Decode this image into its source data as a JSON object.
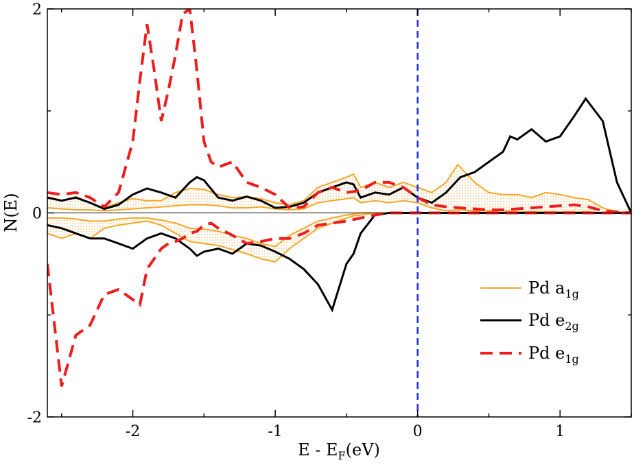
{
  "chart_data": {
    "type": "line",
    "title": "",
    "xlabel": "E - E_F(eV)",
    "xlabel_parts": {
      "main": "E - E",
      "sub": "F",
      "tail": "(eV)"
    },
    "ylabel": "N(E)",
    "xlim": [
      -2.6,
      1.5
    ],
    "ylim": [
      -2,
      2
    ],
    "x_ticks": [
      -2,
      -1,
      0,
      1
    ],
    "x_tick_labels": [
      "-2",
      "-1",
      "0",
      "1"
    ],
    "y_ticks": [
      -2,
      0,
      2
    ],
    "y_tick_labels": [
      "-2",
      "0",
      "2"
    ],
    "fermi_level": 0,
    "legend_position": "bottom-right",
    "colors": {
      "a1g": "#f5a623",
      "e2g": "#000000",
      "e1g": "#ee1c1c",
      "fermi": "#1f2fd6",
      "fill": "#f3c277"
    },
    "series": [
      {
        "name": "Pd a1g",
        "legend_main": "Pd a",
        "legend_sub": "1g",
        "style": "solid",
        "x": [
          -2.6,
          -2.5,
          -2.4,
          -2.3,
          -2.2,
          -2.1,
          -2.0,
          -1.9,
          -1.8,
          -1.7,
          -1.6,
          -1.5,
          -1.4,
          -1.3,
          -1.2,
          -1.1,
          -1.0,
          -0.9,
          -0.8,
          -0.7,
          -0.6,
          -0.5,
          -0.45,
          -0.4,
          -0.3,
          -0.2,
          -0.1,
          0,
          0.1,
          0.2,
          0.28,
          0.3,
          0.4,
          0.5,
          0.6,
          0.7,
          0.8,
          0.9,
          1.0,
          1.1,
          1.2,
          1.3,
          1.4,
          1.5
        ],
        "up": [
          0.16,
          0.12,
          0.16,
          0.1,
          0.05,
          0.1,
          0.14,
          0.12,
          0.12,
          0.2,
          0.24,
          0.23,
          0.18,
          0.15,
          0.16,
          0.14,
          0.1,
          0.08,
          0.12,
          0.25,
          0.3,
          0.35,
          0.38,
          0.25,
          0.3,
          0.25,
          0.3,
          0.25,
          0.2,
          0.3,
          0.47,
          0.45,
          0.3,
          0.2,
          0.18,
          0.18,
          0.15,
          0.2,
          0.18,
          0.15,
          0.13,
          0.05,
          0.01,
          0.0
        ],
        "up_inner": [
          0.05,
          0.04,
          0.03,
          0.03,
          0.02,
          0.03,
          0.04,
          0.05,
          0.06,
          0.07,
          0.08,
          0.08,
          0.07,
          0.05,
          0.05,
          0.06,
          0.04,
          0.03,
          0.04,
          0.1,
          0.12,
          0.14,
          0.15,
          0.1,
          0.12,
          0.1,
          0.12,
          0.1,
          0.05,
          0.02,
          0.03,
          0.03,
          0.02,
          0.02,
          0.02,
          0.01,
          0.01,
          0.01,
          0.01,
          0.01,
          0.01,
          0.0,
          0.0,
          0.0
        ],
        "down": [
          -0.2,
          -0.25,
          -0.2,
          -0.25,
          -0.15,
          -0.12,
          -0.1,
          -0.08,
          -0.12,
          -0.2,
          -0.28,
          -0.3,
          -0.32,
          -0.36,
          -0.4,
          -0.45,
          -0.48,
          -0.35,
          -0.25,
          -0.15,
          -0.1,
          -0.05,
          -0.03,
          -0.02,
          0.0,
          0.0,
          0.0,
          0.0,
          0.0,
          0.0,
          0.0,
          0.0,
          0.0,
          0.0,
          0.0,
          0.0,
          0.0,
          0.0,
          0.0,
          0.0,
          0.0,
          0.0,
          0.0,
          0.0
        ],
        "down_inner": [
          -0.05,
          -0.05,
          -0.06,
          -0.08,
          -0.08,
          -0.06,
          -0.05,
          -0.05,
          -0.07,
          -0.1,
          -0.15,
          -0.16,
          -0.18,
          -0.22,
          -0.25,
          -0.3,
          -0.33,
          -0.22,
          -0.15,
          -0.08,
          -0.05,
          -0.02,
          -0.01,
          0.0,
          0.0,
          0.0,
          0.0,
          0.0,
          0.0,
          0.0,
          0.0,
          0.0,
          0.0,
          0.0,
          0.0,
          0.0,
          0.0,
          0.0,
          0.0,
          0.0,
          0.0,
          0.0,
          0.0,
          0.0
        ]
      },
      {
        "name": "Pd e2g",
        "legend_main": "Pd e",
        "legend_sub": "2g",
        "style": "solid",
        "x": [
          -2.6,
          -2.5,
          -2.4,
          -2.3,
          -2.2,
          -2.1,
          -2.0,
          -1.9,
          -1.8,
          -1.7,
          -1.6,
          -1.55,
          -1.5,
          -1.4,
          -1.3,
          -1.2,
          -1.1,
          -1.0,
          -0.9,
          -0.8,
          -0.7,
          -0.6,
          -0.5,
          -0.45,
          -0.4,
          -0.3,
          -0.2,
          -0.1,
          0,
          0.1,
          0.2,
          0.3,
          0.4,
          0.5,
          0.6,
          0.65,
          0.7,
          0.8,
          0.9,
          1.0,
          1.1,
          1.18,
          1.3,
          1.4,
          1.5
        ],
        "up": [
          0.15,
          0.12,
          0.15,
          0.1,
          0.04,
          0.08,
          0.18,
          0.24,
          0.2,
          0.15,
          0.3,
          0.35,
          0.32,
          0.15,
          0.12,
          0.16,
          0.12,
          0.05,
          0.06,
          0.1,
          0.2,
          0.25,
          0.3,
          0.28,
          0.15,
          0.2,
          0.18,
          0.25,
          0.15,
          0.1,
          0.2,
          0.35,
          0.4,
          0.5,
          0.6,
          0.75,
          0.72,
          0.82,
          0.7,
          0.75,
          0.95,
          1.12,
          0.9,
          0.3,
          0.0
        ],
        "down": [
          -0.12,
          -0.15,
          -0.2,
          -0.25,
          -0.25,
          -0.3,
          -0.35,
          -0.25,
          -0.2,
          -0.25,
          -0.35,
          -0.42,
          -0.38,
          -0.35,
          -0.4,
          -0.3,
          -0.32,
          -0.38,
          -0.45,
          -0.55,
          -0.7,
          -0.95,
          -0.5,
          -0.4,
          -0.2,
          -0.02,
          0,
          0,
          0,
          0,
          0,
          0,
          0,
          0,
          0,
          0,
          0,
          0,
          0,
          0,
          0,
          0,
          0,
          0,
          0
        ]
      },
      {
        "name": "Pd e1g",
        "legend_main": "Pd e",
        "legend_sub": "1g",
        "style": "dashed",
        "x": [
          -2.6,
          -2.5,
          -2.4,
          -2.3,
          -2.2,
          -2.1,
          -2.0,
          -1.95,
          -1.9,
          -1.85,
          -1.8,
          -1.75,
          -1.7,
          -1.65,
          -1.6,
          -1.55,
          -1.5,
          -1.45,
          -1.4,
          -1.3,
          -1.2,
          -1.1,
          -1.0,
          -0.9,
          -0.8,
          -0.7,
          -0.6,
          -0.5,
          -0.4,
          -0.3,
          -0.2,
          -0.1,
          0,
          0.1,
          0.2,
          0.3,
          0.4,
          0.5,
          0.6,
          0.7,
          0.8,
          0.9,
          1.0,
          1.1,
          1.2,
          1.3,
          1.4,
          1.5
        ],
        "up": [
          0.2,
          0.18,
          0.2,
          0.15,
          0.06,
          0.2,
          0.7,
          1.3,
          1.85,
          1.4,
          0.9,
          1.2,
          1.55,
          1.95,
          2.0,
          1.4,
          0.7,
          0.5,
          0.45,
          0.5,
          0.3,
          0.25,
          0.18,
          0.05,
          0.06,
          0.2,
          0.25,
          0.2,
          0.22,
          0.3,
          0.3,
          0.25,
          0.15,
          0.08,
          0.06,
          0.05,
          0.04,
          0.03,
          0.03,
          0.04,
          0.05,
          0.06,
          0.07,
          0.08,
          0.06,
          0.02,
          0.01,
          0.0
        ],
        "down": [
          -0.5,
          -1.7,
          -1.2,
          -1.1,
          -0.8,
          -0.75,
          -0.85,
          -0.9,
          -0.55,
          -0.45,
          -0.35,
          -0.3,
          -0.28,
          -0.25,
          -0.2,
          -0.18,
          -0.12,
          -0.1,
          -0.15,
          -0.22,
          -0.3,
          -0.28,
          -0.25,
          -0.25,
          -0.2,
          -0.12,
          -0.1,
          -0.08,
          -0.05,
          -0.02,
          0,
          0,
          0,
          0,
          0,
          0,
          0,
          0,
          0,
          0,
          0,
          0,
          0,
          0,
          0,
          0,
          0,
          0
        ]
      }
    ]
  }
}
